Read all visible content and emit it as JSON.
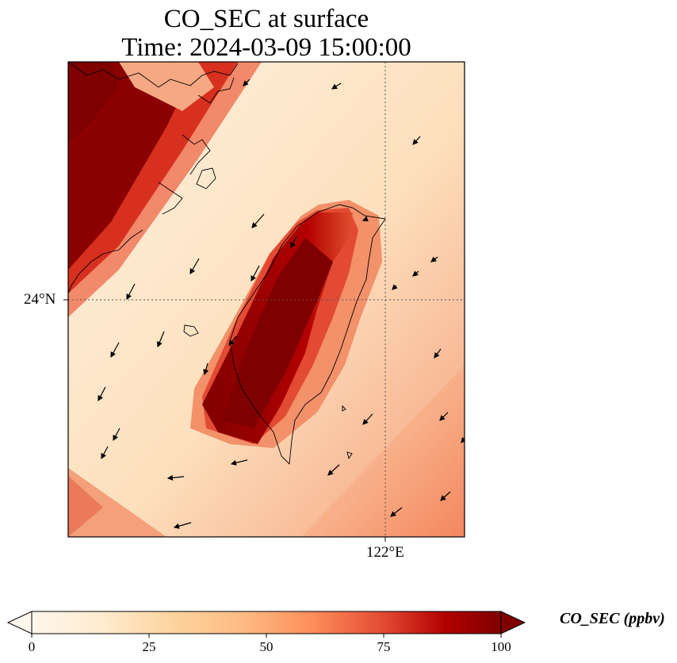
{
  "title_line1": "CO_SEC at surface",
  "title_line2": "Time: 2024-03-09 15:00:00",
  "map": {
    "lat_gridline_label": "24°N",
    "lon_gridline_label": "122°E",
    "field": "CO_SEC",
    "colormap": "OrRd",
    "colors": {
      "low": "#fff7ec",
      "mid_low": "#fdd49e",
      "mid": "#fc8d59",
      "mid_high": "#d7301f",
      "high": "#7f0000"
    },
    "features": [
      "coastlines",
      "wind-vectors",
      "dotted-gridlines"
    ]
  },
  "colorbar": {
    "label": "CO_SEC (ppbv)",
    "ticks": [
      "0",
      "25",
      "50",
      "75",
      "100"
    ],
    "min": 0,
    "max": 100,
    "extend": "both"
  }
}
